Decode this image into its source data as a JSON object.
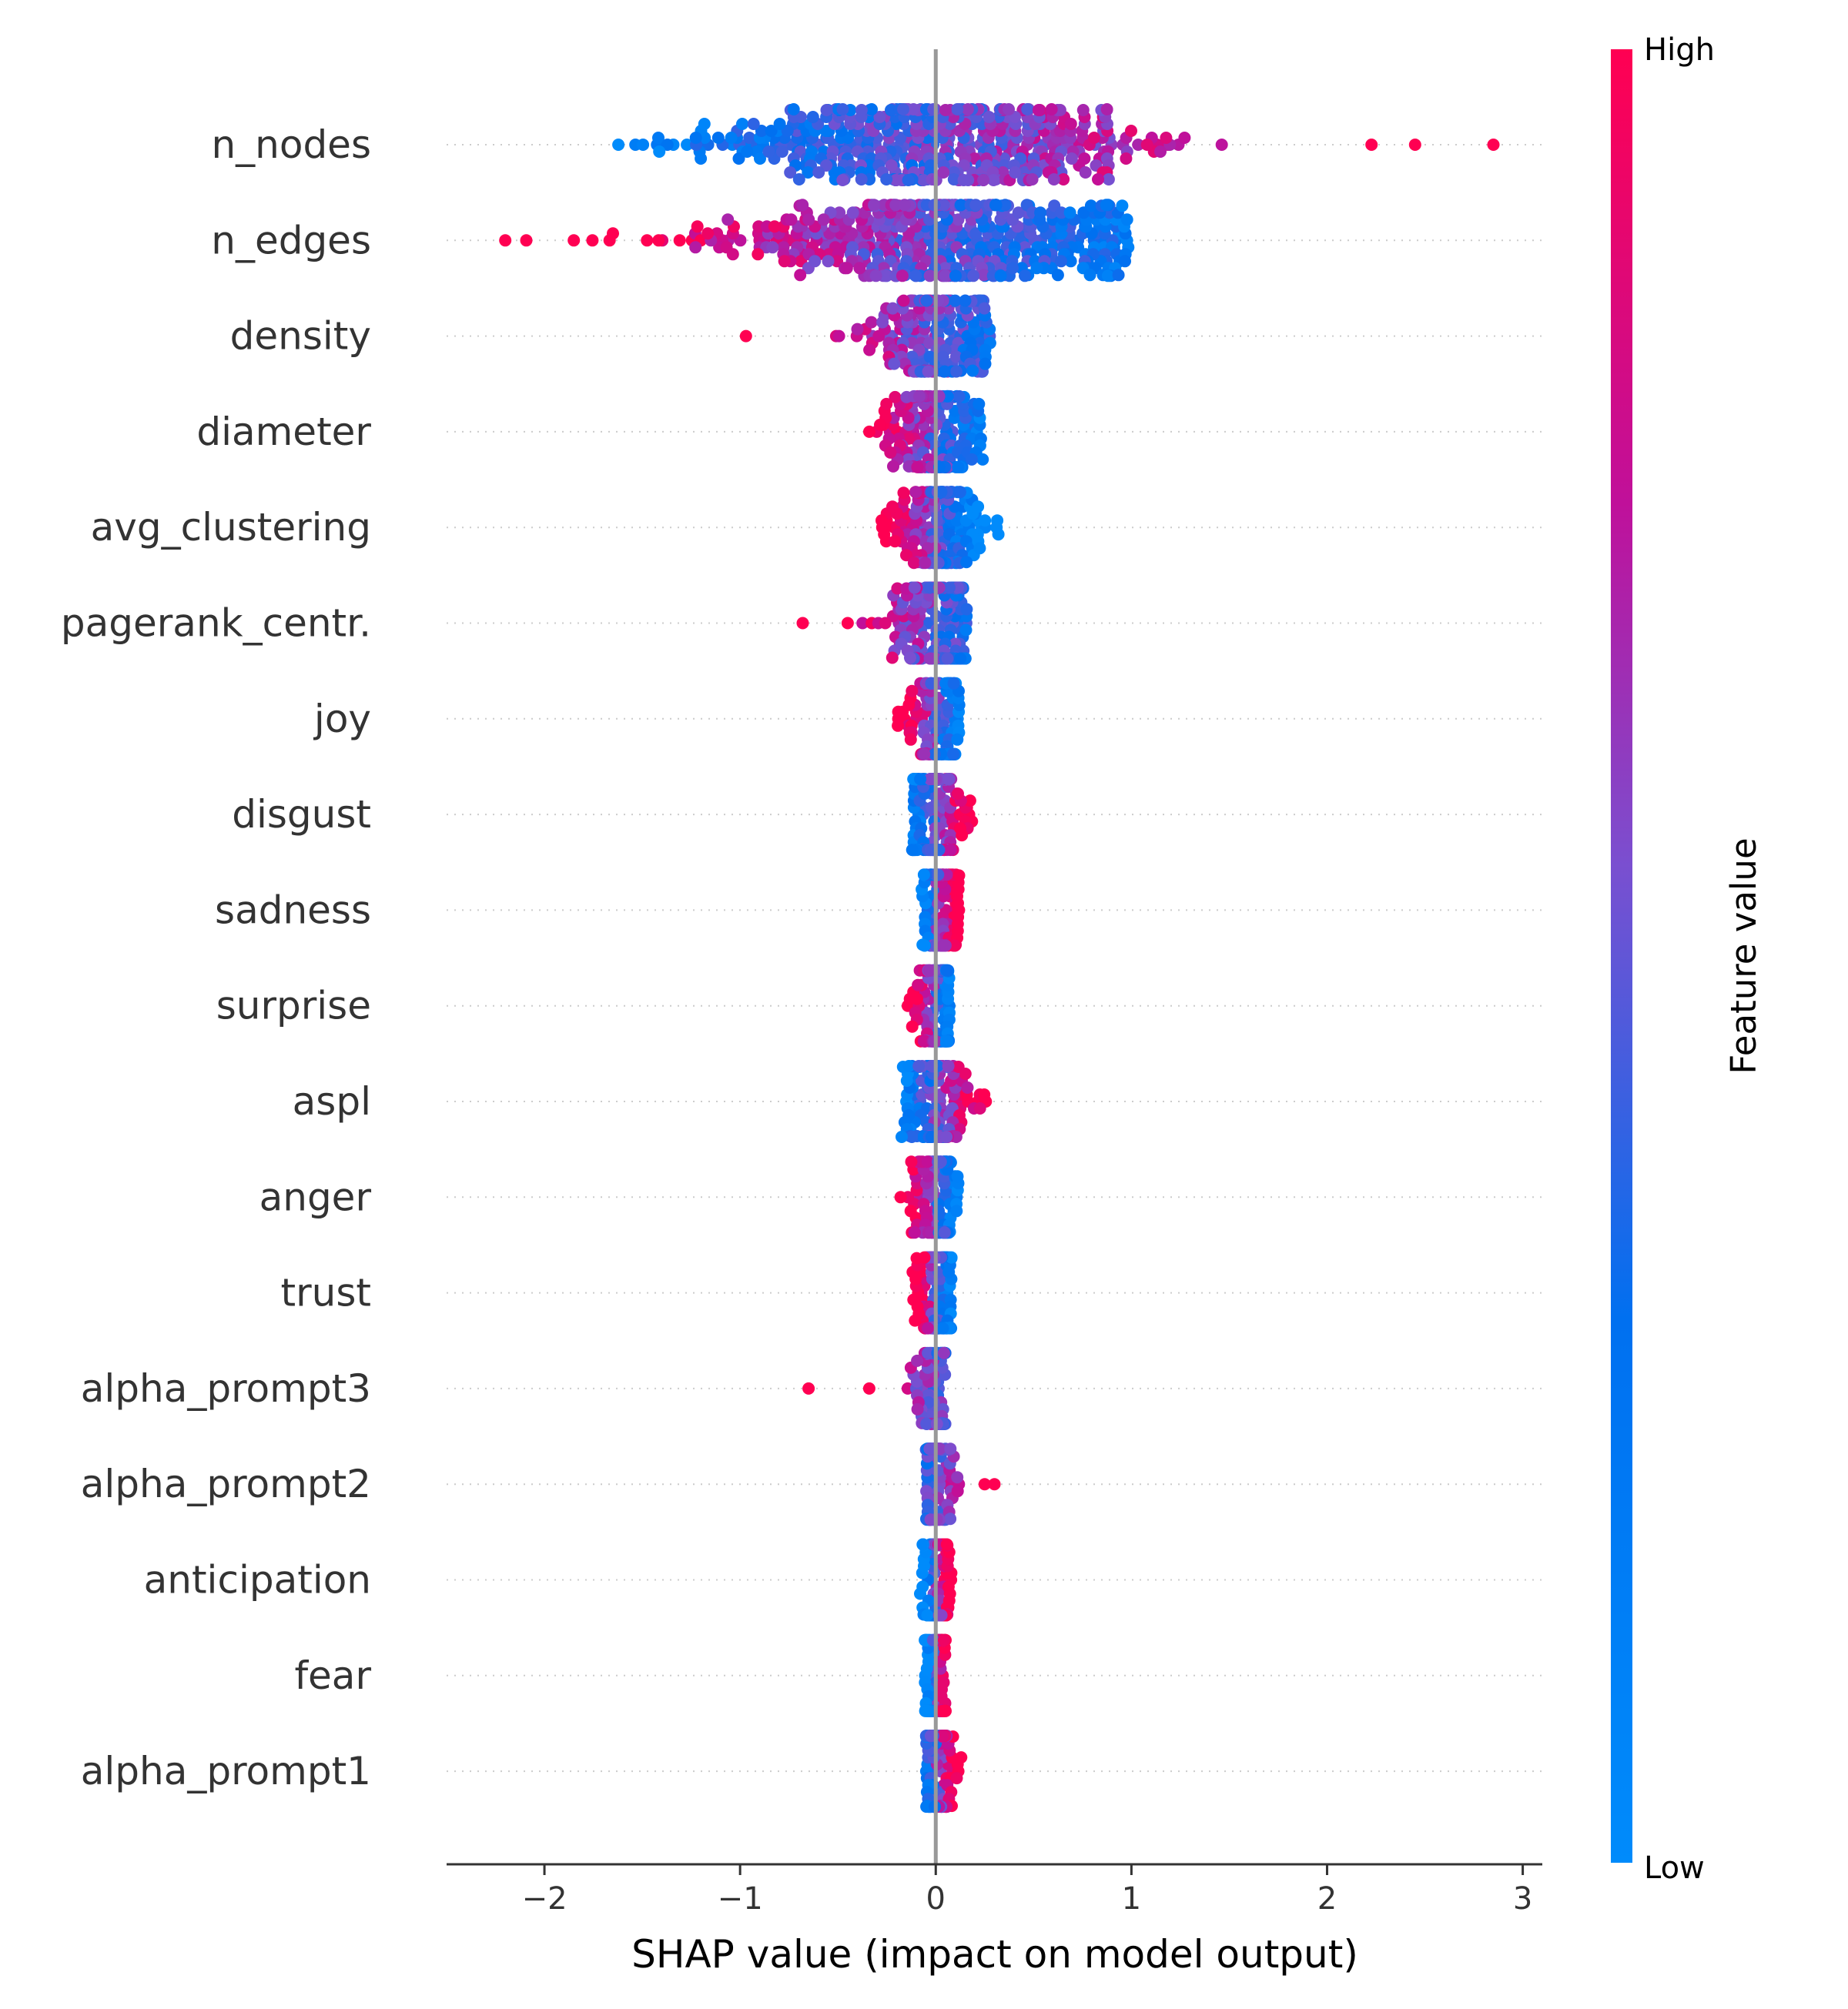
{
  "chart_data": {
    "type": "scatter",
    "subtype": "shap-beeswarm",
    "title": "",
    "xlabel": "SHAP value (impact on model output)",
    "xlim": [
      -2.5,
      3.1
    ],
    "xticks": [
      -2,
      -1,
      0,
      1,
      2,
      3
    ],
    "xtick_labels": [
      "−2",
      "−1",
      "0",
      "1",
      "2",
      "3"
    ],
    "colorbar": {
      "title": "Feature value",
      "high_label": "High",
      "low_label": "Low",
      "low_color": "#008bfb",
      "high_color": "#ff0052"
    },
    "colors": {
      "zero_line": "#999999",
      "grid": "#cccccc",
      "axis": "#333333"
    },
    "features": [
      {
        "name": "n_nodes",
        "min": -1.75,
        "max": 2.85,
        "spread": 1.3,
        "trend": 1,
        "outliers": [
          [
            2.85,
            1
          ],
          [
            2.45,
            1
          ]
        ]
      },
      {
        "name": "n_edges",
        "min": -2.2,
        "max": 1.0,
        "spread": 1.3,
        "trend": -1,
        "outliers": [
          [
            -2.2,
            1
          ],
          [
            -1.85,
            1
          ],
          [
            -1.65,
            1
          ]
        ]
      },
      {
        "name": "density",
        "min": -0.97,
        "max": 0.28,
        "spread": 0.4,
        "trend": -1,
        "outliers": [
          [
            -0.97,
            1
          ]
        ]
      },
      {
        "name": "diameter",
        "min": -0.45,
        "max": 0.25,
        "spread": 0.3,
        "trend": -1,
        "outliers": []
      },
      {
        "name": "avg_clustering",
        "min": -0.3,
        "max": 0.32,
        "spread": 0.28,
        "trend": -1,
        "outliers": [
          [
            0.32,
            0
          ]
        ]
      },
      {
        "name": "pagerank_centr.",
        "min": -0.68,
        "max": 0.16,
        "spread": 0.32,
        "trend": -1,
        "outliers": [
          [
            -0.68,
            1
          ],
          [
            -0.45,
            1
          ]
        ]
      },
      {
        "name": "joy",
        "min": -0.2,
        "max": 0.12,
        "spread": 0.2,
        "trend": -1,
        "outliers": []
      },
      {
        "name": "disgust",
        "min": -0.12,
        "max": 0.22,
        "spread": 0.2,
        "trend": 1,
        "outliers": []
      },
      {
        "name": "sadness",
        "min": -0.08,
        "max": 0.12,
        "spread": 0.15,
        "trend": 1,
        "outliers": []
      },
      {
        "name": "surprise",
        "min": -0.15,
        "max": 0.07,
        "spread": 0.15,
        "trend": -1,
        "outliers": []
      },
      {
        "name": "aspl",
        "min": -0.18,
        "max": 0.3,
        "spread": 0.2,
        "trend": 1,
        "outliers": []
      },
      {
        "name": "anger",
        "min": -0.18,
        "max": 0.12,
        "spread": 0.15,
        "trend": -1,
        "outliers": []
      },
      {
        "name": "trust",
        "min": -0.12,
        "max": 0.08,
        "spread": 0.15,
        "trend": -1,
        "outliers": []
      },
      {
        "name": "alpha_prompt3",
        "min": -0.65,
        "max": 0.05,
        "spread": 0.12,
        "trend": -1,
        "outliers": [
          [
            -0.65,
            1
          ],
          [
            -0.34,
            1
          ]
        ]
      },
      {
        "name": "alpha_prompt2",
        "min": -0.05,
        "max": 0.3,
        "spread": 0.1,
        "trend": 1,
        "outliers": [
          [
            0.3,
            1
          ],
          [
            0.25,
            1
          ]
        ]
      },
      {
        "name": "anticipation",
        "min": -0.08,
        "max": 0.08,
        "spread": 0.1,
        "trend": 1,
        "outliers": []
      },
      {
        "name": "fear",
        "min": -0.06,
        "max": 0.06,
        "spread": 0.1,
        "trend": 1,
        "outliers": []
      },
      {
        "name": "alpha_prompt1",
        "min": -0.05,
        "max": 0.13,
        "spread": 0.1,
        "trend": 1,
        "outliers": [
          [
            0.13,
            1
          ]
        ]
      }
    ]
  }
}
